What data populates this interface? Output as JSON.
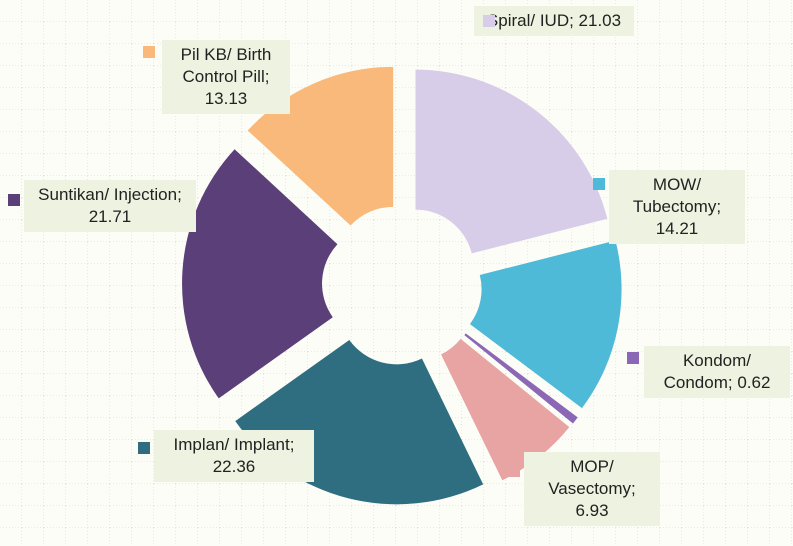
{
  "chart_data": {
    "type": "pie",
    "categories": [
      "Spiral/ IUD",
      "MOW/ Tubectomy",
      "Kondom/ Condom",
      "MOP/ Vasectomy",
      "Implan/ Implant",
      "Suntikan/ Injection",
      "Pil KB/ Birth Control Pill"
    ],
    "values": [
      21.03,
      14.21,
      0.62,
      6.93,
      22.36,
      21.71,
      13.13
    ],
    "colors": [
      "#d8cde8",
      "#4fb9d8",
      "#8b68b6",
      "#e8a3a3",
      "#2f6e80",
      "#5b3f78",
      "#f8b97a"
    ],
    "label_separator": "; "
  }
}
